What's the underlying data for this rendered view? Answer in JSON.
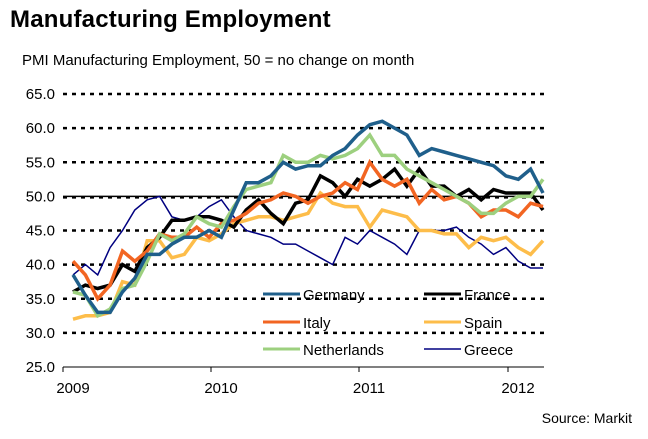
{
  "chart_data": {
    "type": "line",
    "title": "Manufacturing Employment",
    "subtitle": "PMI Manufacturing Employment, 50 = no change on month",
    "source": "Source: Markit",
    "xlabel": "",
    "ylabel": "",
    "ylim": [
      25,
      65
    ],
    "y_ticks": [
      "65.0",
      "60.0",
      "55.0",
      "50.0",
      "45.0",
      "40.0",
      "35.0",
      "30.0",
      "25.0"
    ],
    "y_tick_values": [
      65,
      60,
      55,
      50,
      45,
      40,
      35,
      30,
      25
    ],
    "x_ticks": [
      "2009",
      "2010",
      "2011",
      "2012"
    ],
    "x_range": [
      "Jan 2009",
      "Mar 2012"
    ],
    "reference_line": 50,
    "grid": "horizontal dotted",
    "legend_position": "bottom-right inside",
    "series": [
      {
        "name": "Germany",
        "color": "#1f5f8b",
        "values": [
          38.5,
          35.5,
          33,
          33,
          36,
          38,
          41.5,
          41.5,
          43,
          44,
          44,
          45,
          44,
          48,
          52,
          52,
          53,
          55,
          54,
          54.5,
          54.5,
          56,
          57,
          59,
          60.5,
          61,
          60,
          59,
          56,
          57,
          56.5,
          56,
          55.5,
          55,
          54.5,
          53,
          52.5,
          54,
          50.5
        ]
      },
      {
        "name": "France",
        "color": "#000000",
        "values": [
          36,
          37,
          36.5,
          37,
          40,
          39,
          42.5,
          44,
          46.5,
          46.5,
          47,
          47,
          46.5,
          45.5,
          48,
          49.5,
          47.5,
          46,
          49,
          49.5,
          53,
          52,
          50,
          52.5,
          51.5,
          52.5,
          54,
          51.5,
          54,
          51.5,
          51.5,
          50,
          51,
          49.5,
          51,
          50.5,
          50.5,
          50.5,
          48
        ]
      },
      {
        "name": "Italy",
        "color": "#f26522",
        "values": [
          40.5,
          38.5,
          35,
          37,
          42,
          40.5,
          42,
          44.5,
          44,
          44,
          45.5,
          44,
          46,
          46.5,
          47.5,
          49,
          49.5,
          50.5,
          50,
          49,
          50,
          50.5,
          52,
          51,
          55,
          52.5,
          51.5,
          52.5,
          49,
          51,
          49.5,
          50,
          49,
          47,
          48,
          48,
          47,
          49,
          48.5
        ]
      },
      {
        "name": "Spain",
        "color": "#fdbd4a",
        "values": [
          32,
          32.5,
          32.5,
          33,
          37.5,
          37,
          43.5,
          43.5,
          41,
          41.5,
          44,
          43.5,
          44.5,
          46,
          46.5,
          47,
          47,
          46.5,
          47,
          47.5,
          50.5,
          49,
          48.5,
          48.5,
          45.5,
          48,
          47.5,
          47,
          45,
          45,
          44.5,
          44.5,
          42.5,
          44,
          43.5,
          44,
          42.5,
          41.5,
          43.5
        ]
      },
      {
        "name": "Netherlands",
        "color": "#9dd07f",
        "values": [
          36,
          35.5,
          32.5,
          33.5,
          36.5,
          37,
          40.5,
          44.5,
          43.5,
          44.5,
          47,
          46,
          45.5,
          48.5,
          51,
          51.5,
          52,
          56,
          55,
          55,
          56,
          55.5,
          56,
          57,
          59,
          56,
          56,
          54,
          53,
          52,
          51,
          50,
          49,
          47.5,
          47.5,
          49,
          50,
          50,
          52.5
        ]
      },
      {
        "name": "Greece",
        "color": "#000080",
        "values": [
          38.5,
          40,
          38.5,
          42.5,
          45,
          48,
          49.5,
          50,
          47,
          46.5,
          47,
          48.5,
          49.5,
          47,
          45,
          44.5,
          44,
          43,
          43,
          42,
          41,
          40,
          44,
          43,
          45,
          44,
          43,
          41.5,
          45,
          45,
          45,
          45.5,
          44,
          43,
          41.5,
          42.5,
          40.5,
          39.5,
          39.5
        ]
      }
    ]
  }
}
